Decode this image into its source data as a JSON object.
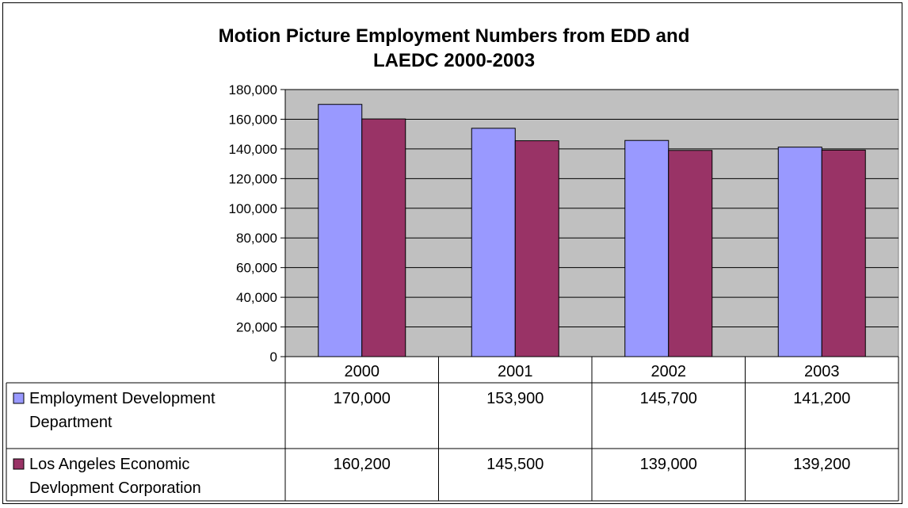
{
  "chart_data": {
    "type": "bar",
    "title": "Motion Picture Employment Numbers from EDD and\nLAEDC 2000-2003",
    "categories": [
      "2000",
      "2001",
      "2002",
      "2003"
    ],
    "series": [
      {
        "name_lines": [
          "Employment Development",
          "Department"
        ],
        "values": [
          170000,
          153900,
          145700,
          141200
        ],
        "labels": [
          "170,000",
          "153,900",
          "145,700",
          "141,200"
        ],
        "color": "#9999FF"
      },
      {
        "name_lines": [
          "Los Angeles Economic",
          "Devlopment Corporation"
        ],
        "values": [
          160200,
          145500,
          139000,
          139200
        ],
        "labels": [
          "160,200",
          "145,500",
          "139,000",
          "139,200"
        ],
        "color": "#993366"
      }
    ],
    "ylim": [
      0,
      180000
    ],
    "yticks": [
      0,
      20000,
      40000,
      60000,
      80000,
      100000,
      120000,
      140000,
      160000,
      180000
    ],
    "ytick_labels": [
      "0",
      "20,000",
      "40,000",
      "60,000",
      "80,000",
      "100,000",
      "120,000",
      "140,000",
      "160,000",
      "180,000"
    ],
    "plot_background": "#C0C0C0",
    "grid": true,
    "data_table": true
  }
}
